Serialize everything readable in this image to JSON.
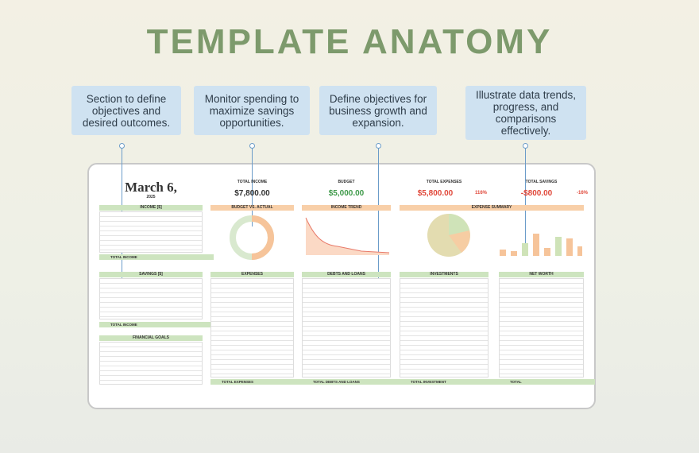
{
  "title": "TEMPLATE ANATOMY",
  "callouts": [
    "Section to define objectives and desired outcomes.",
    "Monitor spending to maximize savings opportunities.",
    "Define objectives for business growth and expansion.",
    "Illustrate data trends, progress, and comparisons effectively."
  ],
  "sheet": {
    "date": "March 6,",
    "year": "2025",
    "kpis": [
      {
        "label": "TOTAL INCOME",
        "value": "$7,800.00"
      },
      {
        "label": "BUDGET",
        "value": "$5,000.00"
      },
      {
        "label": "TOTAL EXPENSES",
        "value": "$5,800.00",
        "pct": "116%"
      },
      {
        "label": "TOTAL SAVINGS",
        "value": "-$800.00",
        "pct": "-16%"
      }
    ],
    "sections": {
      "income": "INCOME [$]",
      "income_total": "TOTAL INCOME",
      "savings": "SAVINGS [$]",
      "savings_total": "TOTAL INCOME",
      "goals": "FINANCIAL GOALS",
      "budget_vs_actual": "BUDGET VS. ACTUAL",
      "income_trend": "INCOME TREND",
      "expense_summary": "EXPENSE SUMMARY",
      "expenses": "EXPENSES",
      "expenses_total": "TOTAL EXPENSES",
      "debts": "DEBTS AND LOANS",
      "debts_total": "TOTAL DEBTS AND LOANS",
      "investments": "INVESTMENTS",
      "investments_total": "TOTAL INVESTMENT",
      "net_worth": "NET WORTH",
      "net_worth_total": "TOTAL"
    }
  }
}
